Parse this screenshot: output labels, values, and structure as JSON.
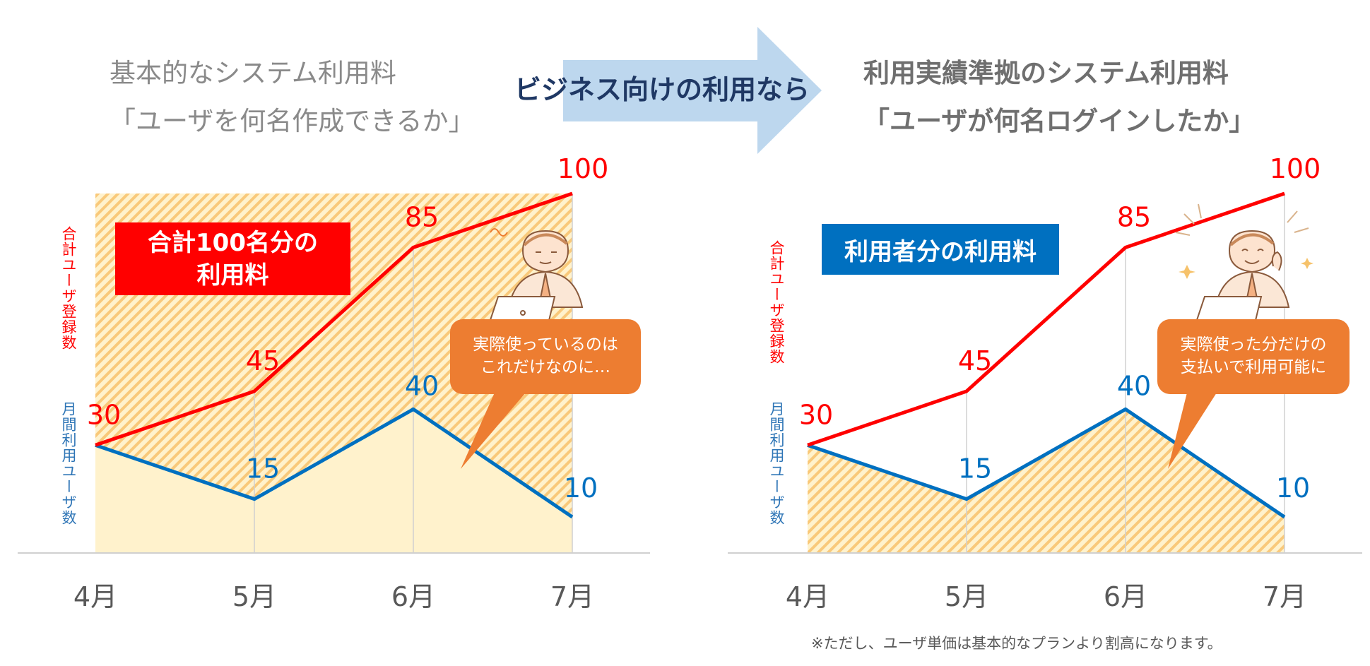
{
  "header": {
    "left_title_line1": "基本的なシステム利用料",
    "left_title_line2": "「ユーザを何名作成できるか」",
    "arrow_label": "ビジネス向けの利用なら",
    "right_title_line1": "利用実績準拠のシステム利用料",
    "right_title_line2": "「ユーザが何名ログインしたか」"
  },
  "left_panel": {
    "banner_line1": "合計100名分の",
    "banner_line2": "利用料",
    "bubble_line1": "実際使っているのは",
    "bubble_line2": "これだけなのに…",
    "ylabel_registered": "合計ユーザ登録数",
    "ylabel_monthly": "月間利用ユーザ数"
  },
  "right_panel": {
    "banner": "利用者分の利用料",
    "bubble_line1": "実際使った分だけの",
    "bubble_line2": "支払いで利用可能に",
    "ylabel_registered": "合計ユーザ登録数",
    "ylabel_monthly": "月間利用ユーザ数",
    "note": "※ただし、ユーザ単価は基本的なプランより割高になります。"
  },
  "colors": {
    "registered_line": "#ff0000",
    "monthly_line": "#0070c0",
    "fill_hatch": "#f9c97a",
    "fill_base": "#fff2cc",
    "bubble": "#ed7d31",
    "arrow": "#bdd7ee",
    "axis_label": "#595959"
  },
  "icons": {
    "person_left": "confused-businessman-icon",
    "person_right": "happy-businessman-icon",
    "arrow": "right-arrow-icon"
  },
  "chart_data": [
    {
      "type": "line",
      "categories": [
        "4月",
        "5月",
        "6月",
        "7月"
      ],
      "series": [
        {
          "values": [
            30,
            45,
            85,
            100
          ]
        },
        {
          "values": [
            30,
            15,
            40,
            10
          ]
        }
      ],
      "ylim": [
        0,
        100
      ],
      "grid": "vertical",
      "shaded_area": "full-rectangle"
    },
    {
      "type": "line",
      "categories": [
        "4月",
        "5月",
        "6月",
        "7月"
      ],
      "series": [
        {
          "values": [
            30,
            45,
            85,
            100
          ]
        },
        {
          "values": [
            30,
            15,
            40,
            10
          ]
        }
      ],
      "ylim": [
        0,
        100
      ],
      "grid": "vertical",
      "shaded_area": "under-monthly-line"
    }
  ]
}
